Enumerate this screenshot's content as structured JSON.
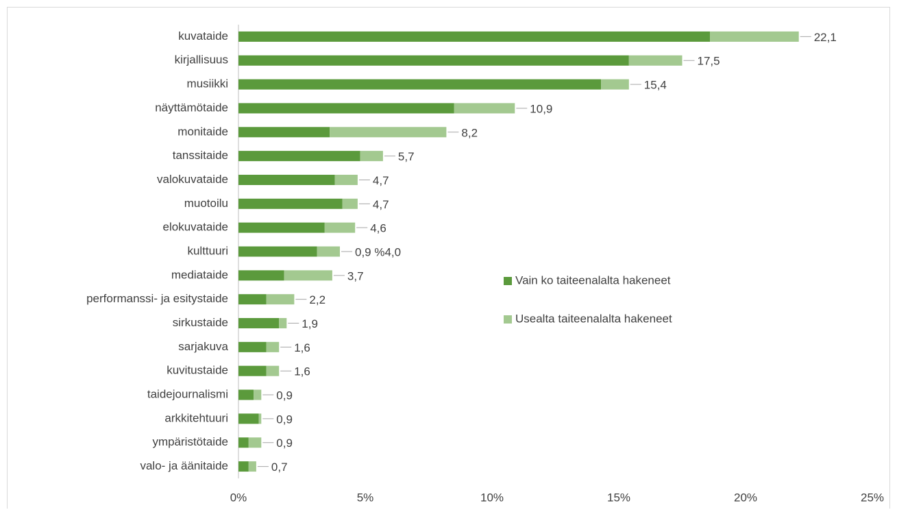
{
  "chart_data": {
    "type": "stacked-bar-horizontal",
    "categories": [
      "kuvataide",
      "kirjallisuus",
      "musiikki",
      "näyttämötaide",
      "monitaide",
      "tanssitaide",
      "valokuvataide",
      "muotoilu",
      "elokuvataide",
      "kulttuuri",
      "mediataide",
      "performanssi- ja esitystaide",
      "sirkustaide",
      "sarjakuva",
      "kuvitustaide",
      "taidejournalismi",
      "arkkitehtuuri",
      "ympäristötaide",
      "valo- ja äänitaide"
    ],
    "series": [
      {
        "name": "Vain ko taiteenalalta hakeneet",
        "color": "#5b9a3c",
        "values": [
          18.6,
          15.4,
          14.3,
          8.5,
          3.6,
          4.8,
          3.8,
          4.1,
          3.4,
          3.1,
          1.8,
          1.1,
          1.6,
          1.1,
          1.1,
          0.6,
          0.8,
          0.4,
          0.4
        ]
      },
      {
        "name": "Usealta taiteenalalta hakeneet",
        "color": "#a3c990",
        "values": [
          3.5,
          2.1,
          1.1,
          2.4,
          4.6,
          0.9,
          0.9,
          0.6,
          1.2,
          0.9,
          1.9,
          1.1,
          0.3,
          0.5,
          0.5,
          0.3,
          0.1,
          0.5,
          0.3
        ]
      }
    ],
    "total_labels": [
      "22,1",
      "17,5",
      "15,4",
      "10,9",
      "8,2",
      "5,7",
      "4,7",
      "4,7",
      "4,6",
      "0,9 %4,0",
      "3,7",
      "2,2",
      "1,9",
      "1,6",
      "1,6",
      "0,9",
      "0,9",
      "0,9",
      "0,7"
    ],
    "xlim": [
      0,
      25
    ],
    "xticks": [
      {
        "value": 0,
        "label": "0%"
      },
      {
        "value": 5,
        "label": "5%"
      },
      {
        "value": 10,
        "label": "10%"
      },
      {
        "value": 15,
        "label": "15%"
      },
      {
        "value": 20,
        "label": "20%"
      },
      {
        "value": 25,
        "label": "25%"
      }
    ],
    "legend": "center-right"
  }
}
